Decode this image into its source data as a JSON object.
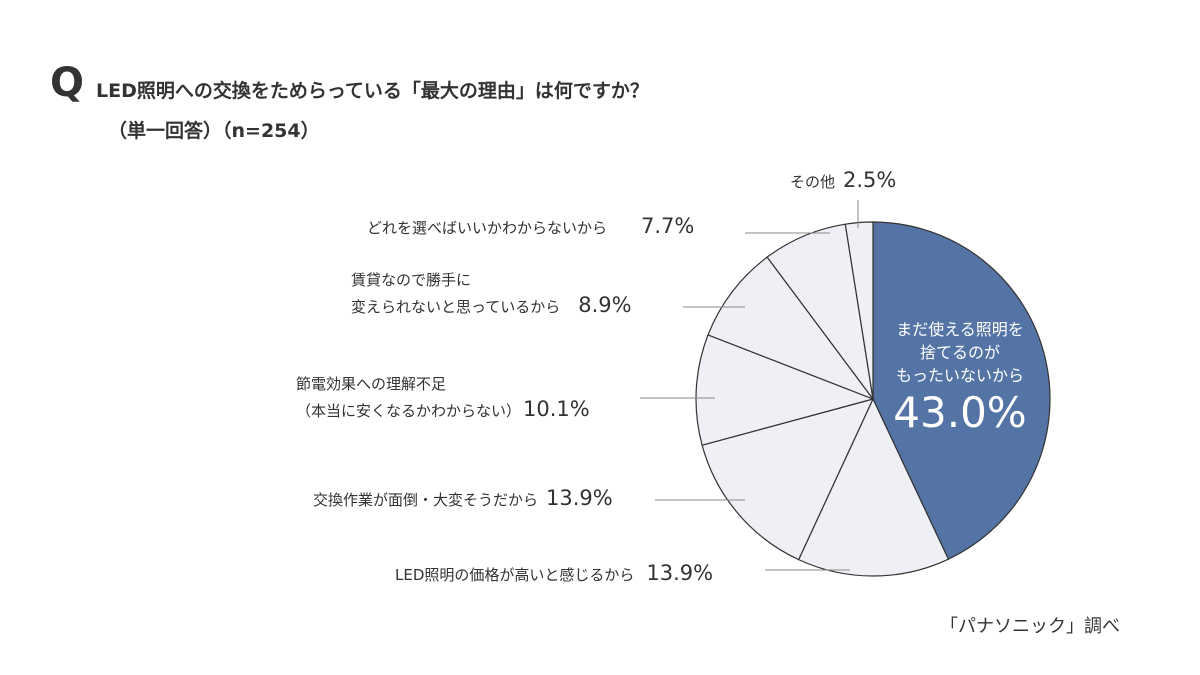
{
  "header": {
    "q_mark": "Q",
    "title": "LED照明への交換をためらっている「最大の理由」は何ですか？",
    "subtitle": "（単一回答）（n=254）"
  },
  "chart_data": {
    "type": "pie",
    "start": "top",
    "direction": "clockwise",
    "colors": {
      "highlight": "#5574a6",
      "other": "#eef0f5",
      "stroke": "#333333"
    },
    "slices": [
      {
        "label": "まだ使える照明を捨てるのがもったいないから",
        "label_lines": [
          "まだ使える照明を",
          "捨てるのが",
          "もったいないから"
        ],
        "value": 43.0,
        "display": "43.0%",
        "highlight": true
      },
      {
        "label": "LED照明の価格が高いと感じるから",
        "label_lines": [
          "LED照明の価格が高いと感じるから"
        ],
        "value": 13.9,
        "display": "13.9%"
      },
      {
        "label": "交換作業が面倒・大変そうだから",
        "label_lines": [
          "交換作業が面倒・大変そうだから"
        ],
        "value": 13.9,
        "display": "13.9%"
      },
      {
        "label": "節電効果への理解不足（本当に安くなるかわからない）",
        "label_lines": [
          "節電効果への理解不足",
          "（本当に安くなるかわからない）"
        ],
        "value": 10.1,
        "display": "10.1%"
      },
      {
        "label": "賃貸なので勝手に変えられないと思っているから",
        "label_lines": [
          "賃貸なので勝手に",
          "変えられないと思っているから"
        ],
        "value": 8.9,
        "display": "8.9%"
      },
      {
        "label": "どれを選べばいいかわからないから",
        "label_lines": [
          "どれを選べばいいかわからないから"
        ],
        "value": 7.7,
        "display": "7.7%"
      },
      {
        "label": "その他",
        "label_lines": [
          "その他"
        ],
        "value": 2.5,
        "display": "2.5%"
      }
    ]
  },
  "footer": {
    "source": "「パナソニック」調べ"
  }
}
